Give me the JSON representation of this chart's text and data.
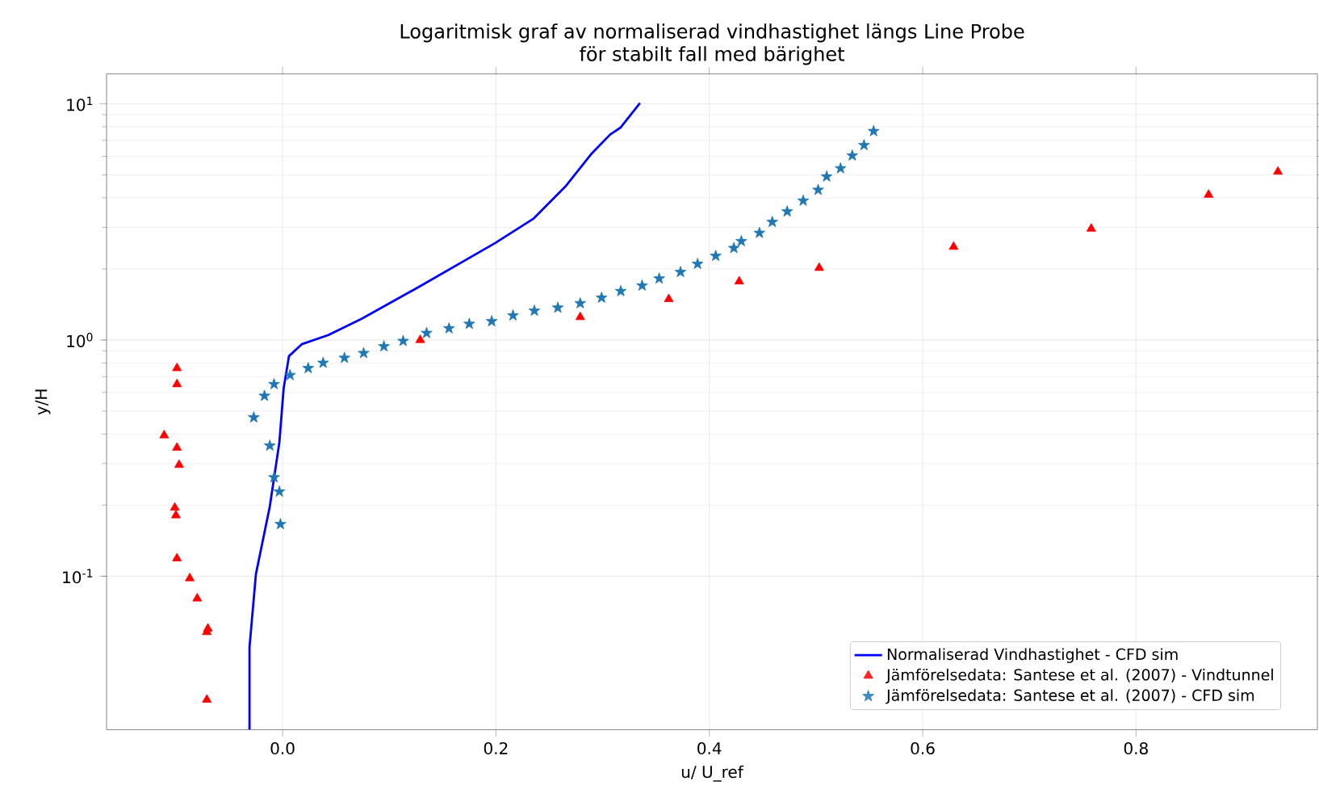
{
  "chart_data": {
    "type": "scatter",
    "title": "Logaritmisk graf av normaliserad vindhastighet längs Line Probe",
    "subtitle": "för stabilt fall med bärighet",
    "xlabel": "u/ U_ref",
    "ylabel": "y/H",
    "log": "y",
    "grid": true,
    "legend": "bottom right",
    "xlim": [
      -0.165,
      0.97
    ],
    "ylim": [
      0.0224,
      13.4
    ],
    "xticks": [
      {
        "value": 0,
        "label": "0.0"
      },
      0.2,
      0.4,
      0.6,
      0.8
    ],
    "yticks": [
      {
        "value": 0.1,
        "label": "10$^{-1}$"
      },
      {
        "value": 1,
        "label": "10$^{0}$"
      },
      {
        "value": 10,
        "label": "10$^{1}$"
      }
    ],
    "series": [
      {
        "name": "Normaliserad Vindhastighet - CFD sim",
        "type": "line",
        "color": "#0000ff",
        "marker": "none",
        "line_style": "solid",
        "x": [
          -0.031,
          -0.031,
          -0.025,
          -0.012,
          -0.003,
          0.001,
          0.006,
          0.018,
          0.043,
          0.074,
          0.129,
          0.199,
          0.235,
          0.265,
          0.29,
          0.307,
          0.317,
          0.335
        ],
        "values": [
          0.0224,
          0.05,
          0.102,
          0.197,
          0.369,
          0.624,
          0.855,
          0.96,
          1.05,
          1.23,
          1.69,
          2.57,
          3.26,
          4.46,
          6.18,
          7.41,
          7.95,
          10.07
        ]
      },
      {
        "name": "Jämförelsedata: Santese et al. (2007) - Vindtunnel",
        "color": "#ff0000",
        "marker": "triangle",
        "x": [
          -0.099,
          -0.099,
          -0.111,
          -0.099,
          -0.097,
          -0.101,
          -0.1,
          -0.099,
          -0.087,
          -0.08,
          -0.07,
          -0.071,
          -0.071,
          0.129,
          0.279,
          0.362,
          0.428,
          0.503,
          0.629,
          0.758,
          0.868,
          0.933
        ],
        "values": [
          0.76,
          0.65,
          0.395,
          0.35,
          0.296,
          0.195,
          0.181,
          0.119,
          0.098,
          0.0805,
          0.06,
          0.058,
          0.03,
          1.0,
          1.25,
          1.49,
          1.77,
          2.02,
          2.48,
          2.96,
          4.12,
          5.16
        ]
      },
      {
        "name": "Jämförelsedata: Santese et al. (2007) - CFD sim",
        "color": "#1f77b4",
        "marker": "star",
        "x": [
          -0.002,
          -0.003,
          -0.008,
          -0.012,
          -0.027,
          -0.017,
          -0.008,
          0.007,
          0.024,
          0.038,
          0.058,
          0.076,
          0.095,
          0.113,
          0.135,
          0.156,
          0.175,
          0.196,
          0.216,
          0.236,
          0.258,
          0.279,
          0.299,
          0.317,
          0.337,
          0.353,
          0.373,
          0.389,
          0.406,
          0.423,
          0.43,
          0.447,
          0.459,
          0.473,
          0.488,
          0.502,
          0.51,
          0.523,
          0.534,
          0.545,
          0.554
        ],
        "values": [
          0.166,
          0.228,
          0.262,
          0.357,
          0.47,
          0.58,
          0.65,
          0.71,
          0.76,
          0.8,
          0.84,
          0.88,
          0.94,
          0.99,
          1.07,
          1.12,
          1.17,
          1.2,
          1.27,
          1.33,
          1.37,
          1.43,
          1.51,
          1.61,
          1.7,
          1.82,
          1.94,
          2.1,
          2.27,
          2.45,
          2.62,
          2.84,
          3.16,
          3.5,
          3.89,
          4.32,
          4.92,
          5.33,
          6.04,
          6.68,
          7.66
        ]
      }
    ]
  }
}
